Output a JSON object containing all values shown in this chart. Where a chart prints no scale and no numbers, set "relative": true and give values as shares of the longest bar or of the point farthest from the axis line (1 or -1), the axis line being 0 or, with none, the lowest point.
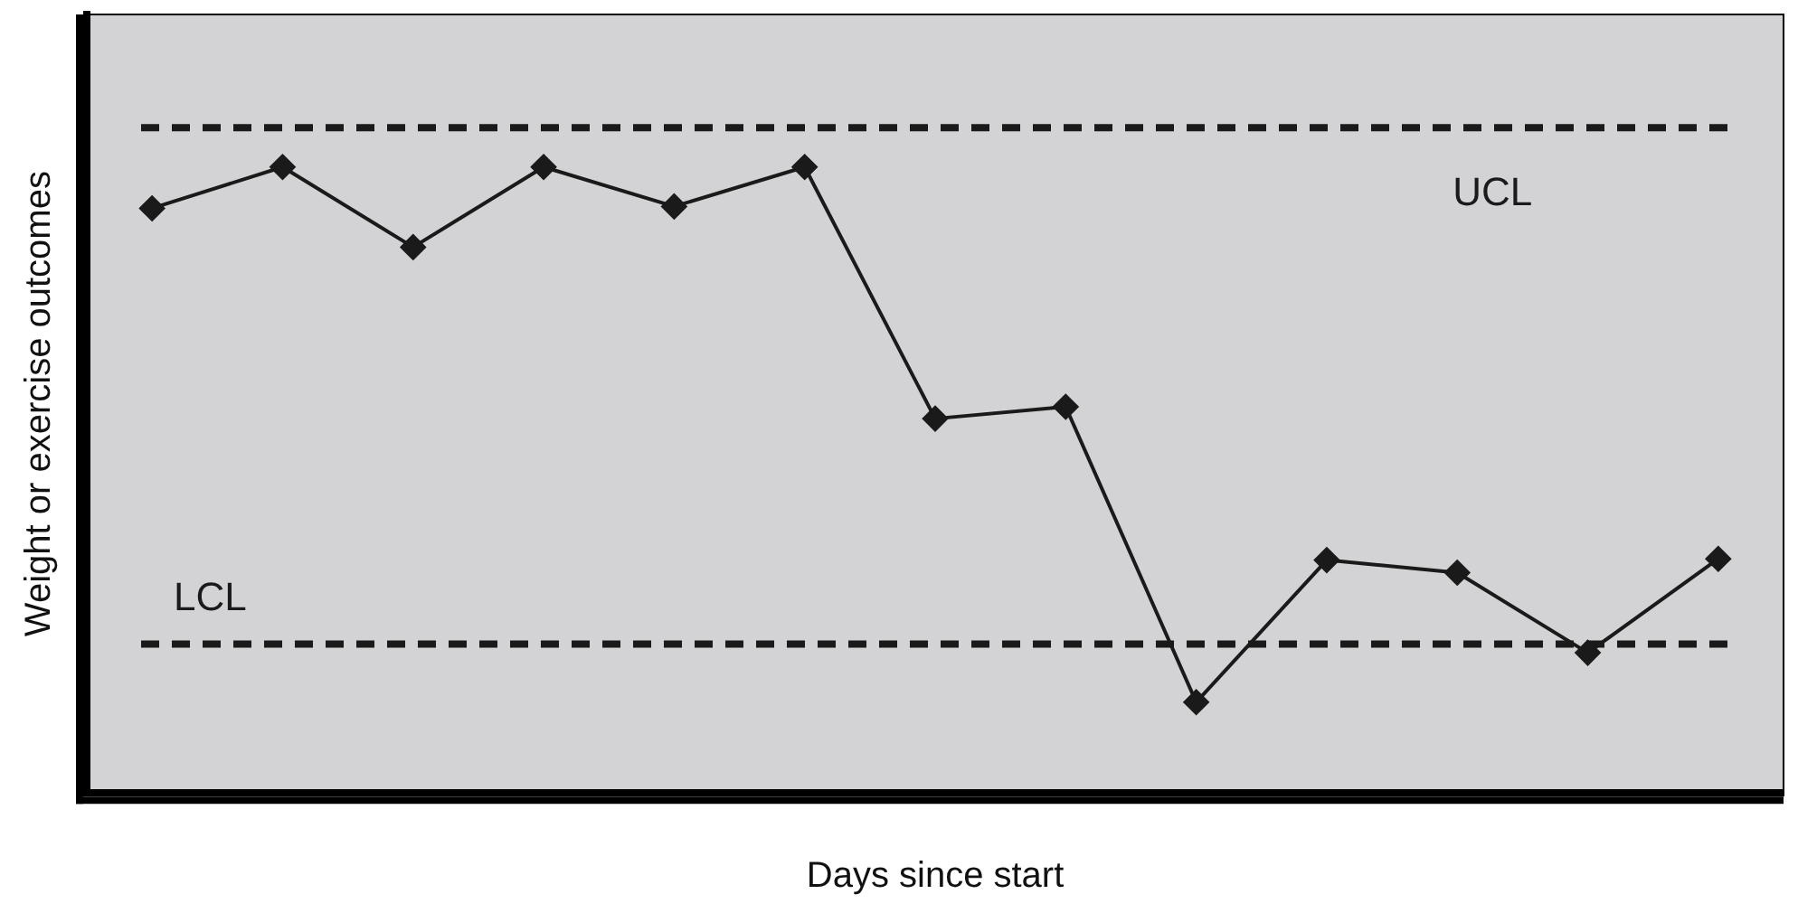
{
  "chart_data": {
    "type": "line",
    "xlabel": "Days since start",
    "ylabel": "Weight or exercise outcomes",
    "categories": [
      null,
      null,
      null,
      null,
      null,
      null,
      null,
      null,
      null,
      null,
      null,
      null,
      null
    ],
    "relative": true,
    "marker": "diamond",
    "line_style": "solid",
    "grid": false,
    "legend": false,
    "series": [
      {
        "color": "#1a1a1a",
        "values": [
          0.934,
          1,
          0.872,
          1,
          0.937,
          1,
          0.598,
          0.617,
          0.145,
          0.372,
          0.352,
          0.224,
          0.374
        ]
      }
    ],
    "ref_lines": [
      {
        "axis": "y",
        "value": 1.063,
        "label": "UCL",
        "color": "#1a1a1a",
        "line_style": "dashed"
      },
      {
        "axis": "y",
        "value": 0.238,
        "label": "LCL",
        "color": "#1a1a1a",
        "line_style": "dashed"
      }
    ]
  }
}
